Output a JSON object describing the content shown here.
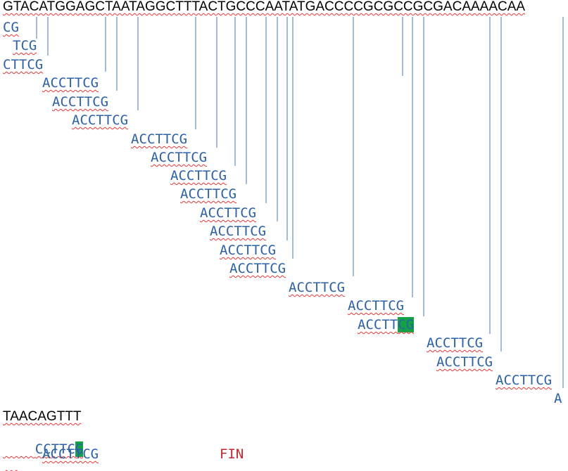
{
  "header_sequence": "GTACATGGAGCTAATAGGCTTTACTGCCCAATATGACCCCGCGCCGCGACAAAACAA",
  "fragments": [
    {
      "text": "CG",
      "highlight": null
    },
    {
      "text": "TCG",
      "highlight": null
    },
    {
      "text": "CTTCG",
      "highlight": null
    },
    {
      "text": "ACCTTCG",
      "highlight": null
    },
    {
      "text": "ACCTTCG",
      "highlight": null
    },
    {
      "text": "ACCTTCG",
      "highlight": null
    },
    {
      "text": "ACCTTCG",
      "highlight": null
    },
    {
      "text": "ACCTTCG",
      "highlight": null
    },
    {
      "text": "ACCTTCG",
      "highlight": null
    },
    {
      "text": "ACCTTCG",
      "highlight": null
    },
    {
      "text": "ACCTTCG",
      "highlight": null
    },
    {
      "text": "ACCTTCG",
      "highlight": null
    },
    {
      "text": "ACCTTCG",
      "highlight": null
    },
    {
      "text": "ACCTTCG",
      "highlight": null
    },
    {
      "text": "ACCTTCG",
      "highlight": null
    },
    {
      "text": "ACCTTCG",
      "highlight": null
    },
    {
      "text": "ACCTTCG",
      "highlight": "CG"
    },
    {
      "text": "ACCTTCG",
      "highlight": null
    },
    {
      "text": "ACCTTCG",
      "highlight": null
    },
    {
      "text": "ACCTTCG",
      "highlight": null
    }
  ],
  "trailing_letter": "A",
  "footer": {
    "sequence": "TAACAGTTT",
    "fragment": {
      "text": "CCTTCG",
      "highlight": "G"
    },
    "last_fragment": "ACCTTCG",
    "fin_label": "FIN"
  },
  "colors": {
    "fragment_text": "#2e62a6",
    "connector_line": "#4a78b8",
    "highlight": "#12a344",
    "spellcheck_underline": "#e53935",
    "fin_text": "#c0272d"
  }
}
